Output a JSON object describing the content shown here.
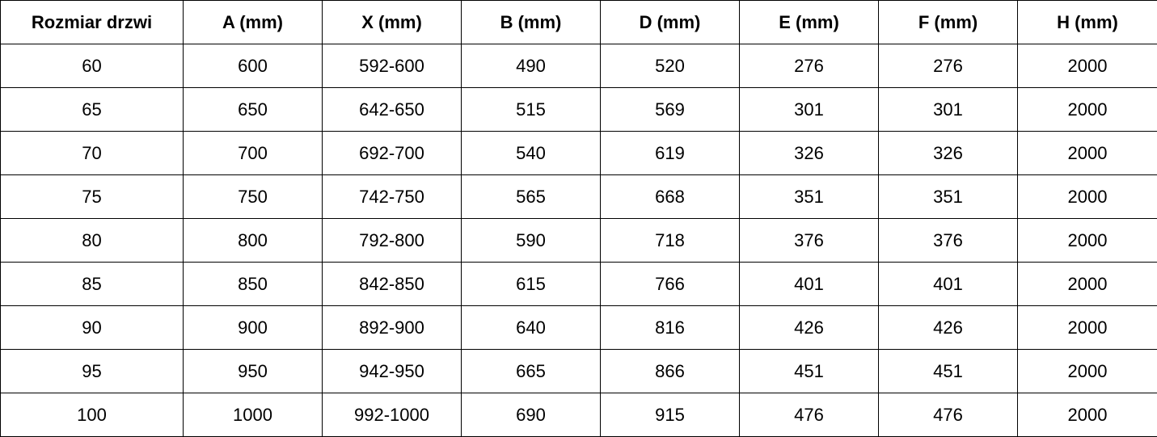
{
  "table": {
    "header": [
      "Rozmiar drzwi",
      "A (mm)",
      "X (mm)",
      "B (mm)",
      "D (mm)",
      "E (mm)",
      "F (mm)",
      "H (mm)"
    ],
    "rows": [
      [
        "60",
        "600",
        "592-600",
        "490",
        "520",
        "276",
        "276",
        "2000"
      ],
      [
        "65",
        "650",
        "642-650",
        "515",
        "569",
        "301",
        "301",
        "2000"
      ],
      [
        "70",
        "700",
        "692-700",
        "540",
        "619",
        "326",
        "326",
        "2000"
      ],
      [
        "75",
        "750",
        "742-750",
        "565",
        "668",
        "351",
        "351",
        "2000"
      ],
      [
        "80",
        "800",
        "792-800",
        "590",
        "718",
        "376",
        "376",
        "2000"
      ],
      [
        "85",
        "850",
        "842-850",
        "615",
        "766",
        "401",
        "401",
        "2000"
      ],
      [
        "90",
        "900",
        "892-900",
        "640",
        "816",
        "426",
        "426",
        "2000"
      ],
      [
        "95",
        "950",
        "942-950",
        "665",
        "866",
        "451",
        "451",
        "2000"
      ],
      [
        "100",
        "1000",
        "992-1000",
        "690",
        "915",
        "476",
        "476",
        "2000"
      ]
    ]
  }
}
